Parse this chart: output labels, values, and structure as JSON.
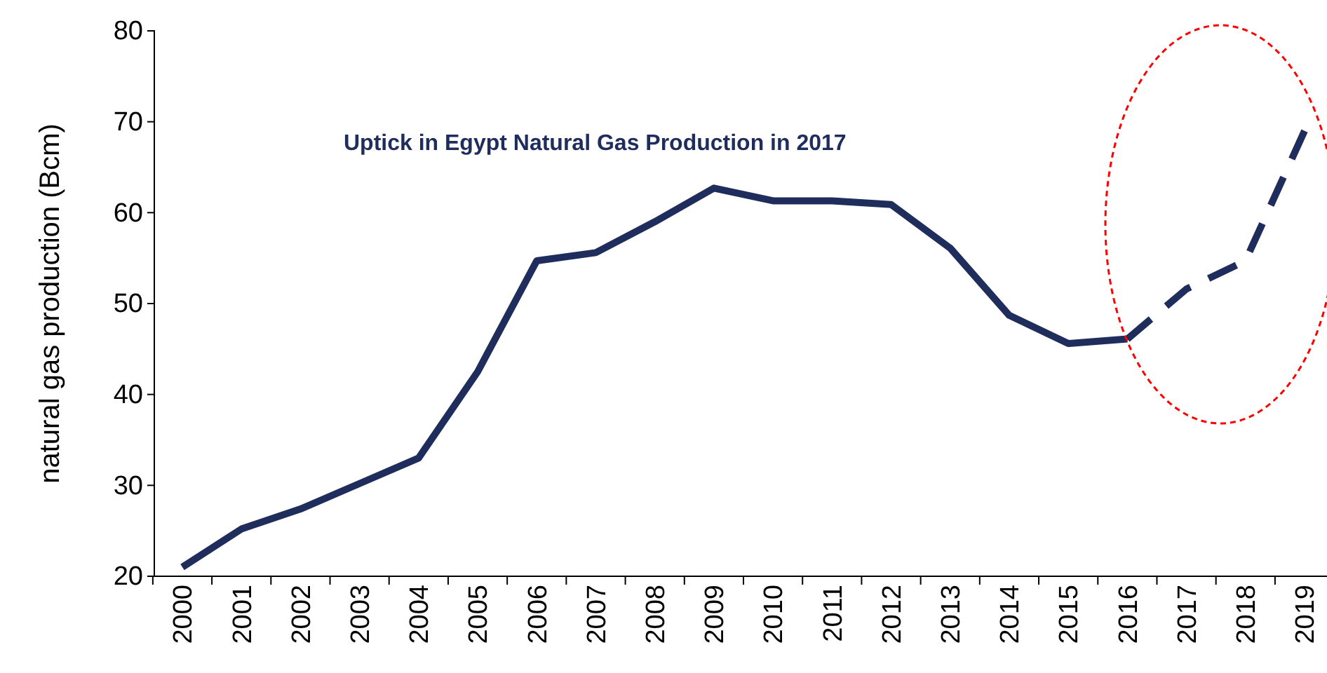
{
  "chart_data": {
    "type": "line",
    "ylabel": "natural gas  production (Bcm)",
    "categories": [
      "2000",
      "2001",
      "2002",
      "2003",
      "2004",
      "2005",
      "2006",
      "2007",
      "2008",
      "2009",
      "2010",
      "2011",
      "2012",
      "2013",
      "2014",
      "2015",
      "2016",
      "2017",
      "2018",
      "2019"
    ],
    "series": [
      {
        "color": "#1f2d5c",
        "line_style": "solid",
        "values": [
          21,
          25.2,
          27.4,
          30.2,
          33,
          42.5,
          54.7,
          55.6,
          59,
          62.7,
          61.3,
          61.3,
          60.9,
          56.1,
          48.7,
          45.6,
          46.1,
          null,
          null,
          null
        ]
      },
      {
        "color": "#1f2d5c",
        "line_style": "dashed",
        "values": [
          null,
          null,
          null,
          null,
          null,
          null,
          null,
          null,
          null,
          null,
          null,
          null,
          null,
          null,
          null,
          null,
          46.1,
          51.6,
          54.7,
          69
        ]
      }
    ],
    "ylim": [
      20,
      80
    ],
    "yticks": [
      20,
      30,
      40,
      50,
      60,
      70,
      80
    ],
    "grid": false,
    "marker": "none",
    "annotations": [
      "Uptick in Egypt Natural Gas Production in 2017"
    ]
  }
}
